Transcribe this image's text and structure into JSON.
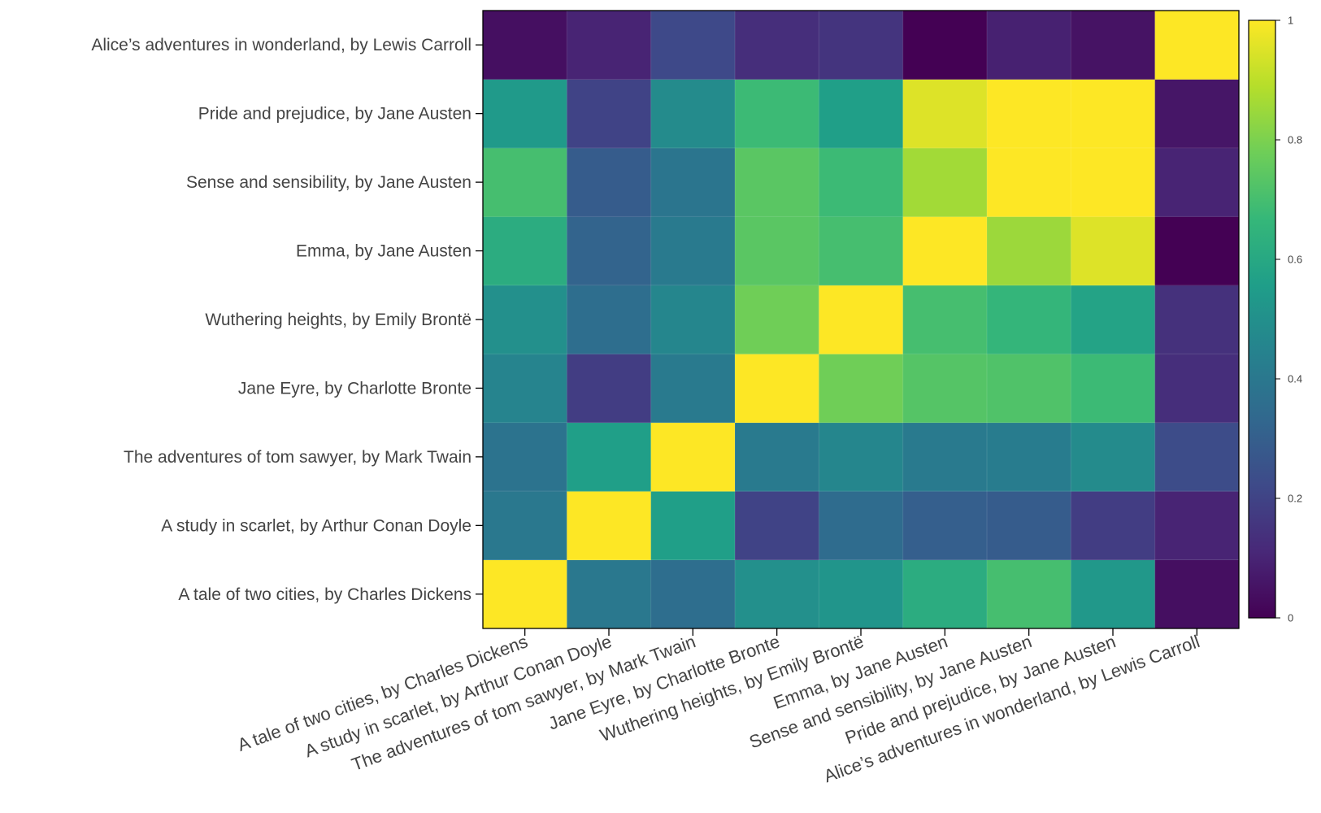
{
  "chart_data": {
    "type": "heatmap",
    "title": "",
    "xlabel": "",
    "ylabel": "",
    "colorscale": "viridis",
    "zlim": [
      0,
      1
    ],
    "x_labels": [
      "A tale of two cities, by Charles Dickens",
      "A study in scarlet, by Arthur Conan Doyle",
      "The adventures of tom sawyer, by Mark Twain",
      "Jane Eyre, by Charlotte Bronte",
      "Wuthering heights, by Emily Brontë",
      "Emma, by Jane Austen",
      "Sense and sensibility, by Jane Austen",
      "Pride and prejudice, by Jane Austen",
      "Alice’s adventures in wonderland, by Lewis Carroll"
    ],
    "y_labels": [
      "A tale of two cities, by Charles Dickens",
      "A study in scarlet, by Arthur Conan Doyle",
      "The adventures of tom sawyer, by Mark Twain",
      "Jane Eyre, by Charlotte Bronte",
      "Wuthering heights, by Emily Brontë",
      "Emma, by Jane Austen",
      "Sense and sensibility, by Jane Austen",
      "Pride and prejudice, by Jane Austen",
      "Alice’s adventures in wonderland, by Lewis Carroll"
    ],
    "z": [
      [
        1.0,
        0.4,
        0.36,
        0.5,
        0.52,
        0.62,
        0.7,
        0.53,
        0.04
      ],
      [
        0.4,
        1.0,
        0.56,
        0.2,
        0.35,
        0.3,
        0.29,
        0.18,
        0.1
      ],
      [
        0.38,
        0.56,
        1.0,
        0.41,
        0.46,
        0.41,
        0.42,
        0.48,
        0.23
      ],
      [
        0.45,
        0.18,
        0.41,
        1.0,
        0.78,
        0.73,
        0.72,
        0.68,
        0.13
      ],
      [
        0.5,
        0.36,
        0.46,
        0.78,
        1.0,
        0.7,
        0.66,
        0.58,
        0.14
      ],
      [
        0.62,
        0.32,
        0.41,
        0.74,
        0.7,
        1.0,
        0.85,
        0.95,
        0.0
      ],
      [
        0.7,
        0.29,
        0.39,
        0.74,
        0.68,
        0.86,
        1.0,
        1.0,
        0.1
      ],
      [
        0.54,
        0.2,
        0.48,
        0.68,
        0.56,
        0.95,
        1.0,
        1.0,
        0.06
      ],
      [
        0.04,
        0.1,
        0.22,
        0.13,
        0.15,
        0.0,
        0.09,
        0.05,
        1.0
      ]
    ],
    "colorbar_ticks": [
      "0",
      "0.2",
      "0.4",
      "0.6",
      "0.8",
      "1"
    ]
  }
}
